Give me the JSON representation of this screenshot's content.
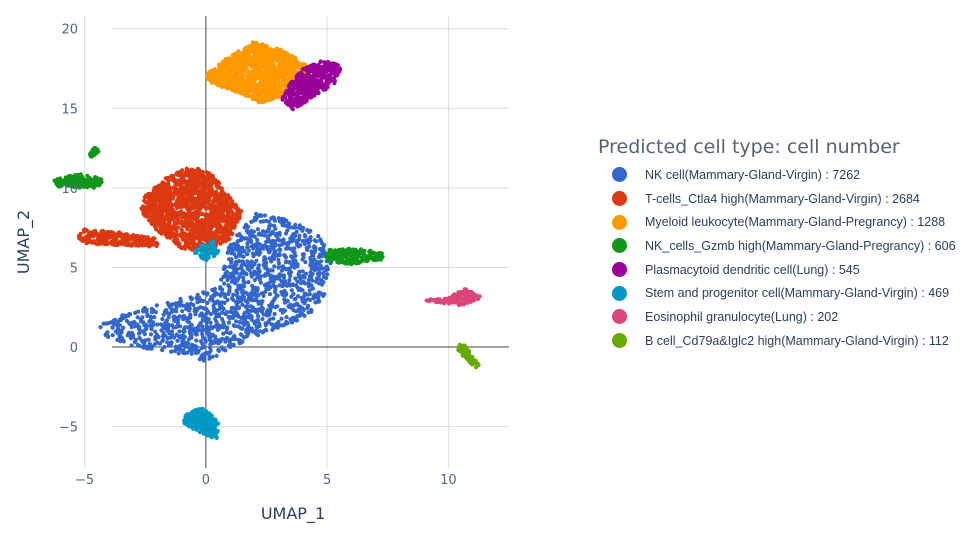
{
  "chart_data": {
    "type": "scatter",
    "xlabel": "UMAP_1",
    "ylabel": "UMAP_2",
    "xlim": [
      -7.5,
      12.5
    ],
    "ylim": [
      -7.6,
      20.8
    ],
    "xticks": [
      -5,
      0,
      5,
      10
    ],
    "yticks": [
      -5,
      0,
      5,
      10,
      15,
      20
    ],
    "xtick_labels": [
      "−5",
      "0",
      "5",
      "10"
    ],
    "ytick_labels": [
      "−5",
      "0",
      "5",
      "10",
      "15",
      "20"
    ],
    "grid": true,
    "zero_lines": true,
    "legend_position": "right",
    "legend_title": "Predicted cell type: cell number",
    "series": [
      {
        "name": "NK cell(Mammary-Gland-Virgin) : 7262",
        "count": 7262,
        "color": "#3366cc",
        "clusters": [
          {
            "polygon": [
              [
                -4.4,
                1.4
              ],
              [
                -3.0,
                2.3
              ],
              [
                -1.5,
                2.8
              ],
              [
                0.5,
                3.8
              ],
              [
                1.0,
                6.5
              ],
              [
                2.0,
                8.4
              ],
              [
                3.5,
                8.0
              ],
              [
                4.7,
                7.0
              ],
              [
                5.2,
                5.5
              ],
              [
                5.0,
                3.5
              ],
              [
                4.3,
                2.0
              ],
              [
                3.0,
                1.2
              ],
              [
                1.5,
                0.2
              ],
              [
                0.0,
                -0.9
              ],
              [
                -1.5,
                -0.4
              ],
              [
                -3.0,
                0.0
              ],
              [
                -4.2,
                0.7
              ]
            ],
            "density": 1.0
          }
        ]
      },
      {
        "name": "T-cells_Ctla4 high(Mammary-Gland-Virgin) : 2684",
        "count": 2684,
        "color": "#dc3912",
        "clusters": [
          {
            "polygon": [
              [
                -2.5,
                9.5
              ],
              [
                -1.5,
                10.8
              ],
              [
                -0.5,
                11.4
              ],
              [
                0.3,
                10.8
              ],
              [
                0.8,
                9.8
              ],
              [
                1.5,
                8.5
              ],
              [
                1.0,
                6.8
              ],
              [
                0.0,
                6.0
              ],
              [
                -1.0,
                6.2
              ],
              [
                -2.0,
                7.3
              ],
              [
                -2.7,
                8.6
              ]
            ],
            "density": 1.0
          },
          {
            "polygon": [
              [
                -5.0,
                7.4
              ],
              [
                -3.5,
                7.2
              ],
              [
                -2.0,
                6.8
              ],
              [
                -2.0,
                6.3
              ],
              [
                -3.5,
                6.4
              ],
              [
                -5.0,
                6.5
              ],
              [
                -5.3,
                6.9
              ]
            ],
            "density": 0.9
          }
        ]
      },
      {
        "name": "Myeloid leukocyte(Mammary-Gland-Pregrancy) : 1288",
        "count": 1288,
        "color": "#ff9900",
        "clusters": [
          {
            "polygon": [
              [
                0.0,
                17.1
              ],
              [
                0.9,
                18.2
              ],
              [
                2.0,
                19.2
              ],
              [
                3.1,
                18.7
              ],
              [
                4.1,
                17.8
              ],
              [
                4.3,
                16.6
              ],
              [
                3.3,
                15.9
              ],
              [
                2.3,
                15.3
              ],
              [
                1.5,
                15.9
              ],
              [
                0.2,
                16.6
              ]
            ],
            "density": 1.0
          }
        ]
      },
      {
        "name": "NK_cells_Gzmb high(Mammary-Gland-Pregrancy) : 606",
        "count": 606,
        "color": "#109618",
        "clusters": [
          {
            "polygon": [
              [
                -6.3,
                10.5
              ],
              [
                -5.3,
                10.9
              ],
              [
                -4.3,
                10.6
              ],
              [
                -4.3,
                10.0
              ],
              [
                -5.4,
                10.0
              ],
              [
                -6.2,
                10.1
              ]
            ],
            "density": 1.0
          },
          {
            "polygon": [
              [
                -4.8,
                12.1
              ],
              [
                -4.6,
                12.6
              ],
              [
                -4.4,
                12.3
              ],
              [
                -4.7,
                11.9
              ]
            ],
            "density": 0.8
          },
          {
            "polygon": [
              [
                5.0,
                6.1
              ],
              [
                6.3,
                6.2
              ],
              [
                7.3,
                5.9
              ],
              [
                7.3,
                5.5
              ],
              [
                6.0,
                5.2
              ],
              [
                5.2,
                5.3
              ],
              [
                4.9,
                5.6
              ]
            ],
            "density": 1.0
          }
        ]
      },
      {
        "name": "Plasmacytoid dendritic cell(Lung) : 545",
        "count": 545,
        "color": "#990099",
        "clusters": [
          {
            "polygon": [
              [
                4.0,
                17.5
              ],
              [
                4.8,
                18.0
              ],
              [
                5.6,
                17.7
              ],
              [
                5.3,
                16.5
              ],
              [
                4.4,
                15.7
              ],
              [
                3.6,
                14.9
              ],
              [
                3.1,
                15.6
              ],
              [
                3.5,
                16.6
              ]
            ],
            "density": 1.0
          }
        ]
      },
      {
        "name": "Stem and progenitor cell(Mammary-Gland-Virgin) : 469",
        "count": 469,
        "color": "#0099c6",
        "clusters": [
          {
            "polygon": [
              [
                -0.9,
                -4.2
              ],
              [
                -0.1,
                -3.8
              ],
              [
                0.5,
                -4.6
              ],
              [
                0.5,
                -5.8
              ],
              [
                -0.1,
                -5.5
              ],
              [
                -0.9,
                -4.8
              ]
            ],
            "density": 1.0
          },
          {
            "polygon": [
              [
                -0.3,
                6.4
              ],
              [
                0.3,
                6.7
              ],
              [
                0.6,
                5.8
              ],
              [
                0.0,
                5.4
              ],
              [
                -0.5,
                5.9
              ]
            ],
            "density": 0.6
          }
        ]
      },
      {
        "name": "Eosinophil granulocyte(Lung) : 202",
        "count": 202,
        "color": "#dd4477",
        "clusters": [
          {
            "polygon": [
              [
                8.8,
                3.0
              ],
              [
                10.0,
                3.1
              ],
              [
                10.7,
                3.7
              ],
              [
                11.4,
                3.1
              ],
              [
                10.6,
                2.6
              ],
              [
                9.5,
                2.8
              ]
            ],
            "density": 1.0
          }
        ]
      },
      {
        "name": "B cell_Cd79a&Iglc2 high(Mammary-Gland-Virgin) : 112",
        "count": 112,
        "color": "#66aa00",
        "clusters": [
          {
            "polygon": [
              [
                10.4,
                0.2
              ],
              [
                10.7,
                0.1
              ],
              [
                11.3,
                -1.2
              ],
              [
                11.1,
                -1.3
              ],
              [
                10.4,
                -0.3
              ]
            ],
            "density": 1.0
          }
        ]
      }
    ]
  }
}
